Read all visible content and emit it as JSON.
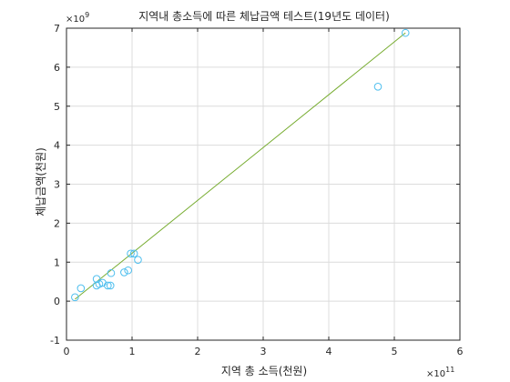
{
  "chart_data": {
    "type": "scatter",
    "title": "지역내 총소득에 따른 체납금액 테스트(19년도 데이터)",
    "xlabel": "지역 총 소득(천원)",
    "ylabel": "체납금액(천원)",
    "x_exponent_label": "×10",
    "x_exponent": "11",
    "y_exponent_label": "×10",
    "y_exponent": "9",
    "xlim": [
      0,
      6
    ],
    "ylim": [
      -1,
      7
    ],
    "xticks": [
      "0",
      "1",
      "2",
      "3",
      "4",
      "5",
      "6"
    ],
    "yticks": [
      "-1",
      "0",
      "1",
      "2",
      "3",
      "4",
      "5",
      "6",
      "7"
    ],
    "grid": true,
    "marker_color": "#4DBEEE",
    "line_color": "#77AC30",
    "points": [
      {
        "x": 0.13,
        "y": 0.1
      },
      {
        "x": 0.22,
        "y": 0.33
      },
      {
        "x": 0.46,
        "y": 0.57
      },
      {
        "x": 0.46,
        "y": 0.4
      },
      {
        "x": 0.5,
        "y": 0.44
      },
      {
        "x": 0.55,
        "y": 0.47
      },
      {
        "x": 0.63,
        "y": 0.4
      },
      {
        "x": 0.67,
        "y": 0.4
      },
      {
        "x": 0.68,
        "y": 0.72
      },
      {
        "x": 0.88,
        "y": 0.74
      },
      {
        "x": 0.94,
        "y": 0.79
      },
      {
        "x": 0.98,
        "y": 1.22
      },
      {
        "x": 1.03,
        "y": 1.22
      },
      {
        "x": 1.09,
        "y": 1.06
      },
      {
        "x": 4.75,
        "y": 5.5
      },
      {
        "x": 5.17,
        "y": 6.88
      }
    ],
    "fit_line": {
      "x": [
        0.13,
        5.17
      ],
      "y": [
        0.05,
        6.88
      ]
    }
  }
}
